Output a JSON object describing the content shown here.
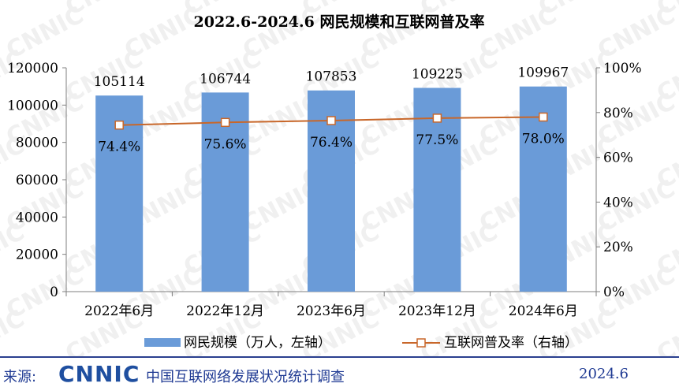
{
  "chart_data": {
    "type": "bar",
    "title": "2022.6-2024.6 网民规模和互联网普及率",
    "categories": [
      "2022年6月",
      "2022年12月",
      "2023年6月",
      "2023年12月",
      "2024年6月"
    ],
    "series": [
      {
        "name": "网民规模（万人，左轴）",
        "type": "bar",
        "axis": "left",
        "values": [
          105114,
          106744,
          107853,
          109225,
          109967
        ],
        "labels": [
          "105114",
          "106744",
          "107853",
          "109225",
          "109967"
        ]
      },
      {
        "name": "互联网普及率（右轴）",
        "type": "line",
        "axis": "right",
        "values": [
          74.4,
          75.6,
          76.4,
          77.5,
          78.0
        ],
        "labels": [
          "74.4%",
          "75.6%",
          "76.4%",
          "77.5%",
          "78.0%"
        ]
      }
    ],
    "y_left": {
      "lim": [
        0,
        120000
      ],
      "ticks": [
        0,
        20000,
        40000,
        60000,
        80000,
        100000,
        120000
      ],
      "tick_labels": [
        "0",
        "20000",
        "40000",
        "60000",
        "80000",
        "100000",
        "120000"
      ]
    },
    "y_right": {
      "lim": [
        0,
        100
      ],
      "ticks": [
        0,
        20,
        40,
        60,
        80,
        100
      ],
      "tick_labels": [
        "0%",
        "20%",
        "40%",
        "60%",
        "80%",
        "100%"
      ]
    },
    "legend_position": "bottom",
    "grid": false,
    "colors": {
      "bar": "#6a9bd8",
      "line": "#c8672a",
      "axis": "#7f7f7f"
    }
  },
  "watermark": "CNNIC",
  "footer": {
    "source_label": "来源:",
    "logo": "CNNIC",
    "source_text": "中国互联网络发展状况统计调查",
    "date": "2024.6"
  }
}
